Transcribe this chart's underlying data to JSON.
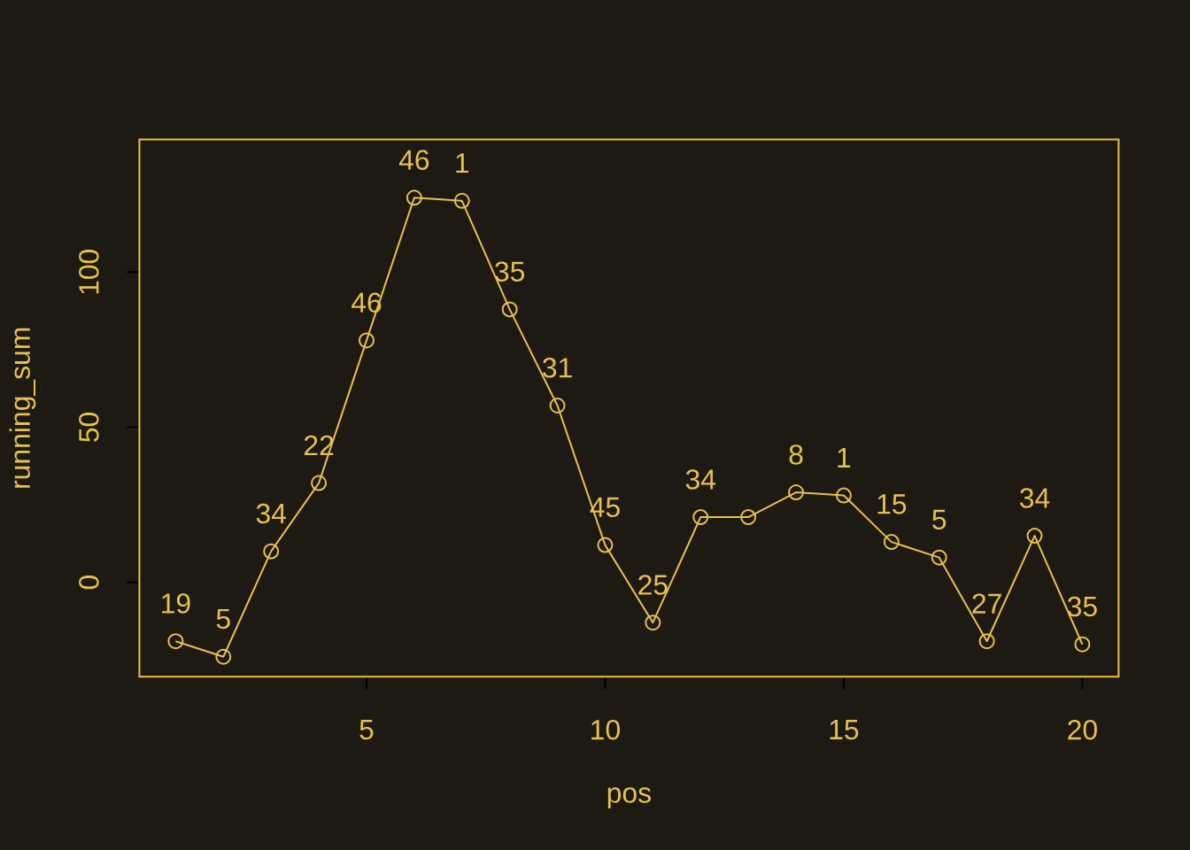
{
  "chart_data": {
    "type": "line",
    "xlabel": "pos",
    "ylabel": "running_sum",
    "x": [
      1,
      2,
      3,
      4,
      5,
      6,
      7,
      8,
      9,
      10,
      11,
      12,
      13,
      14,
      15,
      16,
      17,
      18,
      19,
      20
    ],
    "values": [
      -19,
      -24,
      10,
      32,
      78,
      124,
      123,
      88,
      57,
      12,
      -13,
      21,
      21,
      29,
      28,
      13,
      8,
      -19,
      15,
      -20
    ],
    "annotations": [
      {
        "text": "19",
        "x": 1,
        "y": -19
      },
      {
        "text": "5",
        "x": 2,
        "y": -24
      },
      {
        "text": "34",
        "x": 3,
        "y": 10
      },
      {
        "text": "22",
        "x": 4,
        "y": 32
      },
      {
        "text": "46",
        "x": 5,
        "y": 78
      },
      {
        "text": "46",
        "x": 6,
        "y": 124
      },
      {
        "text": "1",
        "x": 7,
        "y": 123
      },
      {
        "text": "35",
        "x": 8,
        "y": 88
      },
      {
        "text": "31",
        "x": 9,
        "y": 57
      },
      {
        "text": "45",
        "x": 10,
        "y": 12
      },
      {
        "text": "25",
        "x": 11,
        "y": -13
      },
      {
        "text": "34",
        "x": 12,
        "y": 21
      },
      {
        "text": "8",
        "x": 14,
        "y": 29
      },
      {
        "text": "1",
        "x": 15,
        "y": 28
      },
      {
        "text": "15",
        "x": 16,
        "y": 13
      },
      {
        "text": "5",
        "x": 17,
        "y": 8
      },
      {
        "text": "27",
        "x": 18,
        "y": -19
      },
      {
        "text": "34",
        "x": 19,
        "y": 15
      },
      {
        "text": "35",
        "x": 20,
        "y": -20
      }
    ],
    "color": "#e8c050",
    "marker": "circle",
    "line_style": "solid",
    "grid": false,
    "xlim": [
      0.24,
      20.76
    ],
    "ylim": [
      -30.4,
      142.8
    ],
    "xticks": [
      5,
      10,
      15,
      20
    ],
    "yticks": [
      0,
      50,
      100
    ]
  }
}
